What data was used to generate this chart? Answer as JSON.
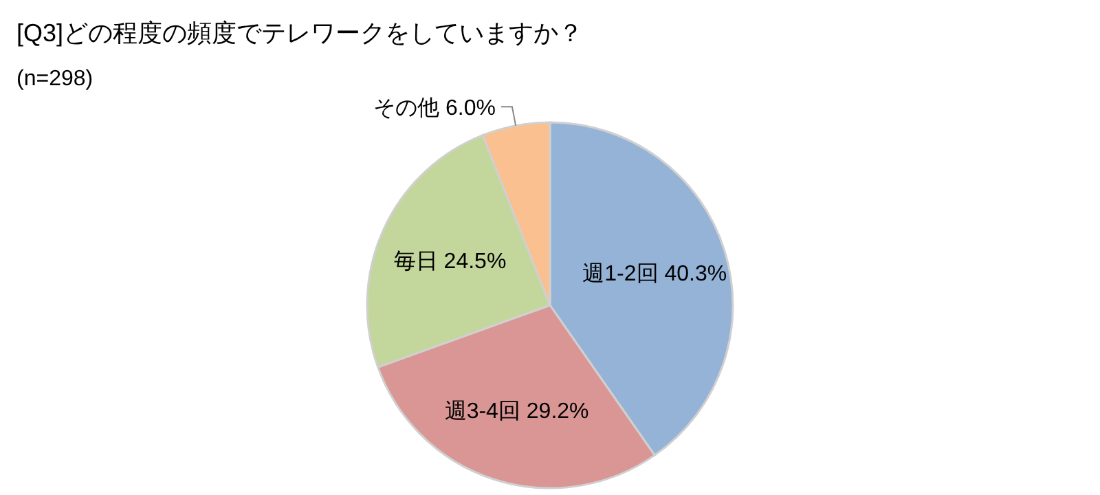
{
  "chart_data": {
    "type": "pie",
    "title": "[Q3]どの程度の頻度でテレワークをしていますか？",
    "subtitle": "(n=298)",
    "categories": [
      "週1-2回",
      "週3-4回",
      "毎日",
      "その他"
    ],
    "values": [
      40.3,
      29.2,
      24.5,
      6.0
    ],
    "colors": [
      "#95b3d7",
      "#d99694",
      "#c3d69b",
      "#fac090"
    ],
    "value_labels": [
      "40.3%",
      "29.2%",
      "24.5%",
      "6.0%"
    ]
  }
}
